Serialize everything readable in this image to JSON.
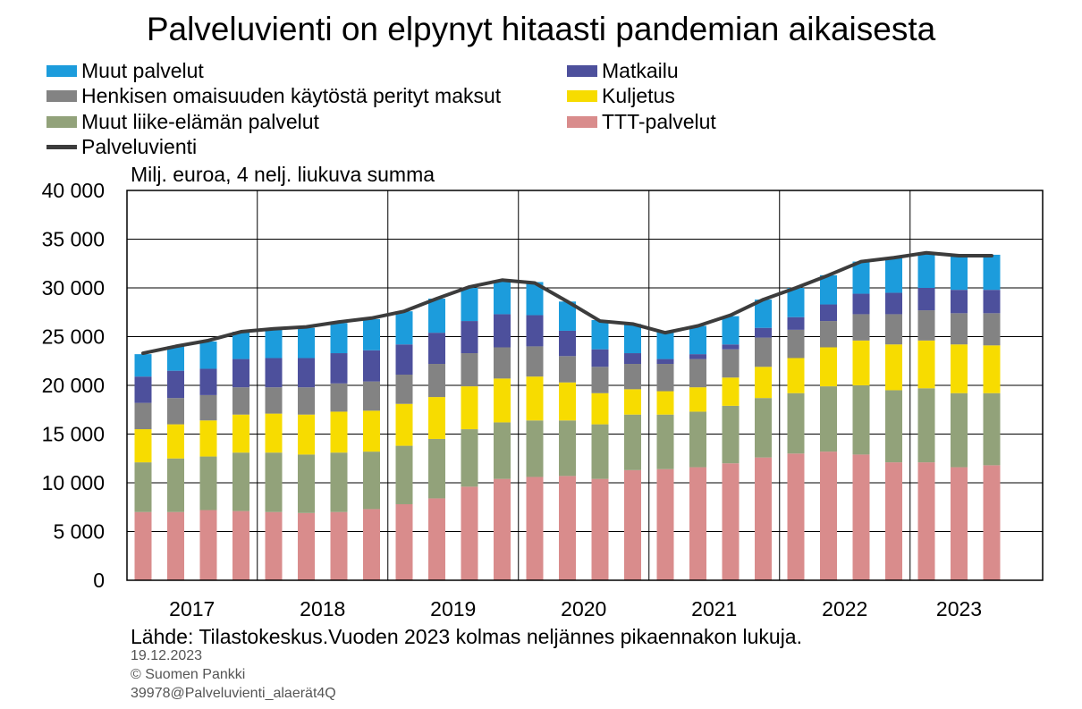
{
  "chart_data": {
    "type": "bar",
    "stacked": true,
    "title": "Palveluvienti on elpynyt hitaasti pandemian aikaisesta",
    "ylabel": "Milj. euroa, 4 nelj. liukuva summa",
    "ylim": [
      0,
      40000
    ],
    "yticks": [
      0,
      5000,
      10000,
      15000,
      20000,
      25000,
      30000,
      35000,
      40000
    ],
    "ytick_labels": [
      "0",
      "5 000",
      "10 000",
      "15 000",
      "20 000",
      "25 000",
      "30 000",
      "35 000",
      "40 000"
    ],
    "years": [
      "2017",
      "2018",
      "2019",
      "2020",
      "2021",
      "2022",
      "2023"
    ],
    "quarters": [
      "2017Q1",
      "2017Q2",
      "2017Q3",
      "2017Q4",
      "2018Q1",
      "2018Q2",
      "2018Q3",
      "2018Q4",
      "2019Q1",
      "2019Q2",
      "2019Q3",
      "2019Q4",
      "2020Q1",
      "2020Q2",
      "2020Q3",
      "2020Q4",
      "2021Q1",
      "2021Q2",
      "2021Q3",
      "2021Q4",
      "2022Q1",
      "2022Q2",
      "2022Q3",
      "2022Q4",
      "2023Q1",
      "2023Q2",
      "2023Q3"
    ],
    "series": [
      {
        "name": "TTT-palvelut",
        "color": "#d98c8c",
        "values": [
          7000,
          7000,
          7200,
          7100,
          7000,
          6900,
          7000,
          7300,
          7800,
          8400,
          9600,
          10400,
          10600,
          10700,
          10400,
          11300,
          11400,
          11600,
          12000,
          12600,
          13000,
          13200,
          12900,
          12100,
          12100,
          11600,
          11800
        ]
      },
      {
        "name": "Muut liike-elämän palvelut",
        "color": "#92a27a",
        "values": [
          5100,
          5500,
          5500,
          6000,
          6100,
          6000,
          6100,
          5900,
          6000,
          6100,
          5900,
          5800,
          5800,
          5700,
          5600,
          5700,
          5600,
          5700,
          5900,
          6100,
          6200,
          6700,
          7100,
          7400,
          7600,
          7600,
          7400
        ]
      },
      {
        "name": "Kuljetus",
        "color": "#f7dc00",
        "values": [
          3400,
          3500,
          3700,
          3900,
          4000,
          4100,
          4200,
          4200,
          4300,
          4300,
          4400,
          4500,
          4500,
          3900,
          3200,
          2600,
          2400,
          2500,
          2900,
          3200,
          3600,
          4000,
          4600,
          4700,
          4900,
          5000,
          4900
        ]
      },
      {
        "name": "Henkisen omaisuuden käytöstä perityt maksut",
        "color": "#838383",
        "values": [
          2700,
          2700,
          2600,
          2800,
          2700,
          2800,
          2900,
          3000,
          3000,
          3400,
          3400,
          3200,
          3100,
          2700,
          2700,
          2600,
          2800,
          2900,
          2900,
          3000,
          2900,
          2700,
          2700,
          3100,
          3100,
          3200,
          3300
        ]
      },
      {
        "name": "Matkailu",
        "color": "#4d509c",
        "values": [
          2700,
          2800,
          2700,
          2900,
          3000,
          3000,
          3100,
          3200,
          3100,
          3200,
          3300,
          3400,
          3200,
          2600,
          1800,
          1100,
          500,
          500,
          500,
          1000,
          1300,
          1700,
          2100,
          2200,
          2300,
          2400,
          2400
        ]
      },
      {
        "name": "Muut palvelut",
        "color": "#1c9cdc",
        "values": [
          2300,
          2500,
          2800,
          2800,
          3000,
          3100,
          3100,
          3200,
          3400,
          3500,
          3400,
          3400,
          3400,
          3000,
          3000,
          3000,
          2800,
          2900,
          2900,
          2900,
          3000,
          3000,
          3300,
          3600,
          3500,
          3500,
          3600
        ]
      }
    ],
    "line": {
      "name": "Palveluvienti",
      "color": "#3c3c3c",
      "values": [
        23300,
        24000,
        24600,
        25500,
        25800,
        26000,
        26500,
        26900,
        27600,
        28900,
        30100,
        30800,
        30500,
        28600,
        26600,
        26300,
        25400,
        26100,
        27200,
        28800,
        30000,
        31300,
        32700,
        33100,
        33600,
        33300,
        33300
      ]
    },
    "legend_position": "top"
  },
  "legend": [
    {
      "label": "Muut palvelut",
      "color": "#1c9cdc",
      "kind": "box"
    },
    {
      "label": "Matkailu",
      "color": "#4d509c",
      "kind": "box"
    },
    {
      "label": "Henkisen omaisuuden käytöstä perityt maksut",
      "color": "#838383",
      "kind": "box"
    },
    {
      "label": "Kuljetus",
      "color": "#f7dc00",
      "kind": "box"
    },
    {
      "label": "Muut liike-elämän palvelut",
      "color": "#92a27a",
      "kind": "box"
    },
    {
      "label": "TTT-palvelut",
      "color": "#d98c8c",
      "kind": "box"
    },
    {
      "label": "Palveluvienti",
      "color": "#3c3c3c",
      "kind": "line"
    }
  ],
  "footer": {
    "source": "Lähde: Tilastokeskus.Vuoden 2023 kolmas neljännes pikaennakon lukuja.",
    "date": "19.12.2023",
    "copyright": "© Suomen Pankki",
    "code": "39978@Palveluvienti_alaerät4Q"
  }
}
